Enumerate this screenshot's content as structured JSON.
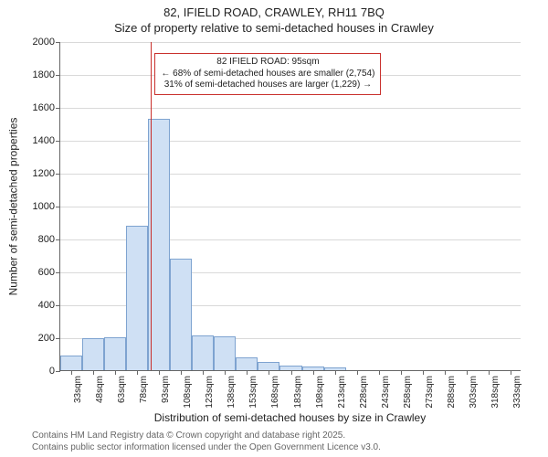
{
  "title": "82, IFIELD ROAD, CRAWLEY, RH11 7BQ",
  "subtitle": "Size of property relative to semi-detached houses in Crawley",
  "chart": {
    "type": "histogram",
    "x_axis_label": "Distribution of semi-detached houses by size in Crawley",
    "y_axis_label": "Number of semi-detached properties",
    "ylim": [
      0,
      2000
    ],
    "ytick_step": 200,
    "x_min_label": 33,
    "x_tick_step": 15,
    "x_tick_count": 21,
    "x_tick_suffix": "sqm",
    "bar_color": "#cfe0f4",
    "bar_border_color": "#7ea3d0",
    "grid_color": "#d9d9d9",
    "background_color": "#ffffff",
    "values": [
      90,
      195,
      200,
      880,
      1530,
      680,
      210,
      205,
      80,
      50,
      30,
      20,
      18,
      0,
      0,
      0,
      0,
      0,
      0,
      0,
      0
    ],
    "marker": {
      "position_sqm": 95,
      "line_color": "#c9302c",
      "annotation_border_color": "#c9302c",
      "lines": [
        "82 IFIELD ROAD: 95sqm",
        "← 68% of semi-detached houses are smaller (2,754)",
        "31% of semi-detached houses are larger (1,229) →"
      ]
    }
  },
  "footer": {
    "line1": "Contains HM Land Registry data © Crown copyright and database right 2025.",
    "line2": "Contains public sector information licensed under the Open Government Licence v3.0."
  }
}
